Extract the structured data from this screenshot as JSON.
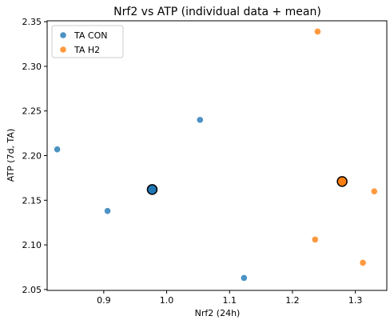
{
  "chart_data": {
    "type": "scatter",
    "title": "Nrf2 vs ATP (individual data + mean)",
    "xlabel": "Nrf2 (24h)",
    "ylabel": "ATP (7d, TA)",
    "xlim": [
      0.81,
      1.35
    ],
    "ylim": [
      2.049,
      2.351
    ],
    "x_ticks": [
      0.9,
      1.0,
      1.1,
      1.2,
      1.3
    ],
    "x_tick_labels": [
      "0.9",
      "1.0",
      "1.1",
      "1.2",
      "1.3"
    ],
    "y_ticks": [
      2.05,
      2.1,
      2.15,
      2.2,
      2.25,
      2.3,
      2.35
    ],
    "y_tick_labels": [
      "2.05",
      "2.10",
      "2.15",
      "2.20",
      "2.25",
      "2.30",
      "2.35"
    ],
    "grid": false,
    "legend_position": "top-left",
    "series": [
      {
        "name": "TA CON",
        "color": "#1f77b4",
        "points": [
          {
            "x": 0.826,
            "y": 2.207
          },
          {
            "x": 0.906,
            "y": 2.138
          },
          {
            "x": 1.053,
            "y": 2.24
          },
          {
            "x": 1.123,
            "y": 2.063
          }
        ],
        "mean": {
          "x": 0.977,
          "y": 2.162
        }
      },
      {
        "name": "TA H2",
        "color": "#ff7f0e",
        "points": [
          {
            "x": 1.24,
            "y": 2.339
          },
          {
            "x": 1.236,
            "y": 2.106
          },
          {
            "x": 1.312,
            "y": 2.08
          },
          {
            "x": 1.33,
            "y": 2.16
          }
        ],
        "mean": {
          "x": 1.279,
          "y": 2.171
        }
      }
    ]
  }
}
